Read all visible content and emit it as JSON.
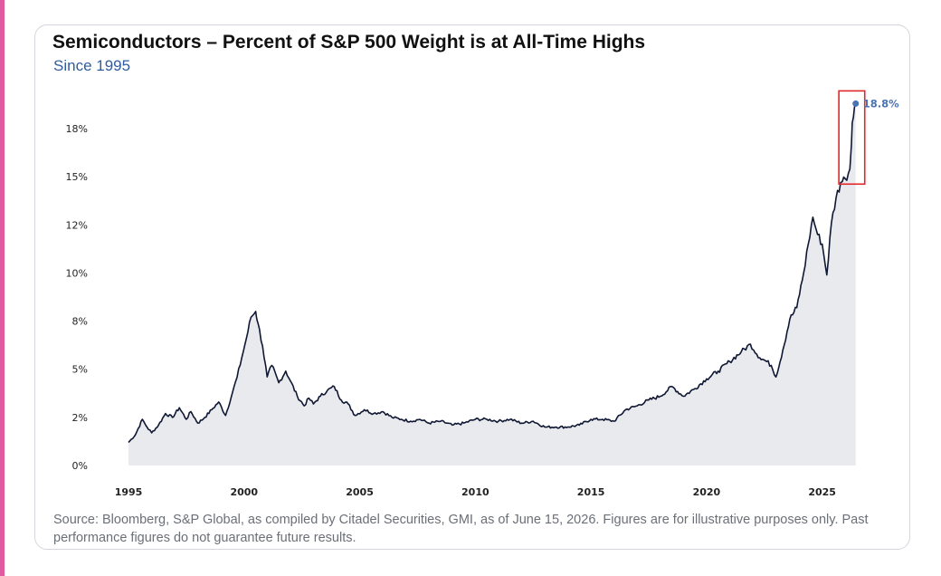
{
  "header": {
    "title": "Semiconductors – Percent of S&P 500 Weight is at All-Time Highs",
    "subtitle": "Since 1995"
  },
  "footer": {
    "source": "Source: Bloomberg, S&P Global, as compiled by Citadel Securities, GMI, as of June 15, 2026. Figures are for illustrative purposes only. Past performance figures do not guarantee future results."
  },
  "colors": {
    "line": "#0f1733",
    "area_fill": "#e9eaee",
    "highlight_box": "#e0282a",
    "end_marker": "#4a73b5",
    "subtitle": "#2f5d9e",
    "accent_edge": "#e05aa0"
  },
  "chart_data": {
    "type": "area",
    "title": "Semiconductors – Percent of S&P 500 Weight is at All-Time Highs",
    "subtitle": "Since 1995",
    "xlabel": "",
    "ylabel": "",
    "xlim": [
      1995,
      2026.5
    ],
    "ylim": [
      0,
      20
    ],
    "x_ticks": [
      1995,
      2000,
      2005,
      2010,
      2015,
      2020,
      2025
    ],
    "x_tick_labels": [
      "1995",
      "2000",
      "2005",
      "2010",
      "2015",
      "2020",
      "2025"
    ],
    "y_ticks": [
      0,
      2.5,
      5,
      7.5,
      10,
      12.5,
      15,
      17.5
    ],
    "y_tick_labels": [
      "0%",
      "2%",
      "5%",
      "8%",
      "10%",
      "12%",
      "15%",
      "18%"
    ],
    "grid": false,
    "series": [
      {
        "x": [
          1995.0,
          1995.3,
          1995.6,
          1995.8,
          1996.0,
          1996.3,
          1996.6,
          1996.9,
          1997.2,
          1997.5,
          1997.7,
          1998.0,
          1998.3,
          1998.6,
          1998.9,
          1999.2,
          1999.5,
          1999.7,
          1999.9,
          2000.1,
          2000.3,
          2000.5,
          2000.6,
          2000.8,
          2001.0,
          2001.2,
          2001.5,
          2001.8,
          2002.0,
          2002.3,
          2002.6,
          2002.8,
          2003.0,
          2003.3,
          2003.6,
          2003.9,
          2004.2,
          2004.5,
          2004.8,
          2005.2,
          2005.6,
          2006.0,
          2006.4,
          2006.8,
          2007.2,
          2007.6,
          2008.0,
          2008.5,
          2009.0,
          2009.5,
          2010.0,
          2010.5,
          2011.0,
          2011.5,
          2012.0,
          2012.5,
          2013.0,
          2013.5,
          2014.0,
          2014.5,
          2015.0,
          2015.5,
          2016.0,
          2016.5,
          2017.0,
          2017.5,
          2018.0,
          2018.5,
          2019.0,
          2019.5,
          2020.0,
          2020.5,
          2021.0,
          2021.5,
          2021.9,
          2022.3,
          2022.6,
          2022.8,
          2023.0,
          2023.3,
          2023.6,
          2023.9,
          2024.2,
          2024.4,
          2024.6,
          2024.8,
          2025.0,
          2025.2,
          2025.4,
          2025.6,
          2025.8,
          2026.0,
          2026.2,
          2026.3,
          2026.45
        ],
        "values": [
          1.2,
          1.6,
          2.4,
          2.0,
          1.7,
          2.1,
          2.7,
          2.5,
          3.0,
          2.4,
          2.8,
          2.2,
          2.5,
          2.9,
          3.3,
          2.6,
          3.8,
          4.6,
          5.6,
          6.6,
          7.7,
          8.0,
          7.4,
          6.2,
          4.6,
          5.2,
          4.3,
          4.9,
          4.4,
          3.6,
          3.1,
          3.5,
          3.2,
          3.6,
          3.9,
          4.1,
          3.4,
          3.2,
          2.6,
          2.9,
          2.7,
          2.8,
          2.5,
          2.4,
          2.3,
          2.4,
          2.2,
          2.3,
          2.1,
          2.2,
          2.4,
          2.4,
          2.3,
          2.4,
          2.2,
          2.3,
          2.0,
          2.0,
          2.0,
          2.1,
          2.4,
          2.4,
          2.3,
          2.9,
          3.1,
          3.4,
          3.6,
          4.1,
          3.6,
          4.0,
          4.5,
          4.9,
          5.4,
          5.9,
          6.3,
          5.6,
          5.4,
          5.2,
          4.6,
          6.0,
          7.6,
          8.2,
          10.0,
          11.5,
          12.9,
          12.0,
          11.5,
          9.9,
          12.6,
          13.9,
          14.7,
          14.9,
          15.4,
          17.8,
          18.8
        ]
      }
    ],
    "annotations": [
      {
        "text": "18.8%",
        "x": 2026.45,
        "y": 18.8,
        "note": "highlighted final value"
      }
    ]
  }
}
